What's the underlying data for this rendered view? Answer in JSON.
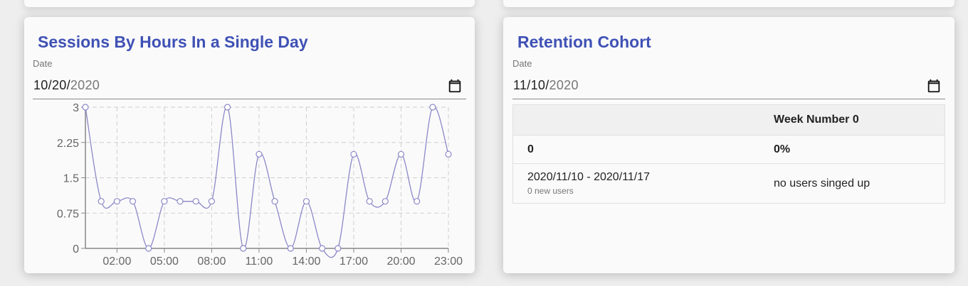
{
  "sessions_card": {
    "title": "Sessions By Hours In a Single Day",
    "date_label": "Date",
    "date_month": "10",
    "date_day": "20",
    "date_year": "2020",
    "chart_data": {
      "type": "line",
      "x": [
        "00:00",
        "01:00",
        "02:00",
        "03:00",
        "04:00",
        "05:00",
        "06:00",
        "07:00",
        "08:00",
        "09:00",
        "10:00",
        "11:00",
        "12:00",
        "13:00",
        "14:00",
        "15:00",
        "16:00",
        "17:00",
        "18:00",
        "19:00",
        "20:00",
        "21:00",
        "22:00",
        "23:00"
      ],
      "values": [
        3,
        1,
        1,
        1,
        0,
        1,
        1,
        1,
        1,
        3,
        0,
        2,
        1,
        0,
        1,
        0,
        0,
        2,
        1,
        1,
        2,
        1,
        3,
        2
      ],
      "xtick_labels": [
        "02:00",
        "05:00",
        "08:00",
        "11:00",
        "14:00",
        "17:00",
        "20:00",
        "23:00"
      ],
      "ytick_labels": [
        "0",
        "0.75",
        "1.5",
        "2.25",
        "3"
      ],
      "ylim": [
        0,
        3
      ],
      "grid": true,
      "line_color": "#8c88c8",
      "point_fill": "#ffffff"
    }
  },
  "cohort_card": {
    "title": "Retention Cohort",
    "date_label": "Date",
    "date_month": "11",
    "date_day": "10",
    "date_year": "2020",
    "table": {
      "header": [
        "",
        "Week Number 0"
      ],
      "total_row": [
        "0",
        "0%"
      ],
      "rows": [
        {
          "range": "2020/11/10 - 2020/11/17",
          "sub": "0 new users",
          "value": "no users singed up"
        }
      ]
    }
  },
  "colors": {
    "title": "#3f51b5",
    "background": "#eeeeee",
    "card": "#fafafa"
  }
}
